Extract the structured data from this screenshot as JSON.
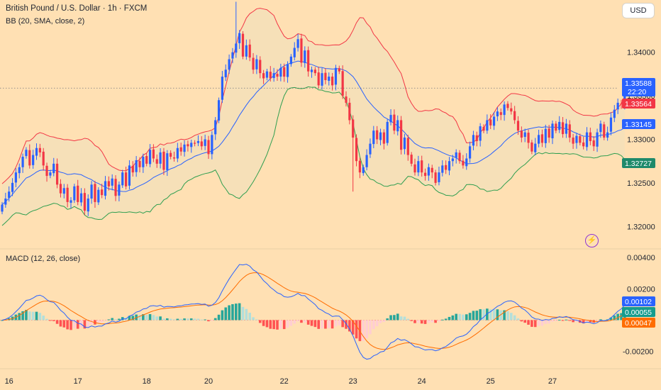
{
  "header": {
    "title": "British Pound / U.S. Dollar · 1h · FXCM",
    "currency": "USD"
  },
  "indicators": {
    "bb_label": "BB (20, SMA, close, 2)",
    "macd_label": "MACD (12, 26, close)"
  },
  "colors": {
    "background": "#ffe0b3",
    "bull": "#2962ff",
    "bear": "#f23645",
    "bb_basis": "#2962ff",
    "bb_upper": "#f23645",
    "bb_lower": "#2e9e4f",
    "bb_fill": "#f5dfb8",
    "macd_line": "#2962ff",
    "signal_line": "#ff6d00",
    "hist_up_strong": "#26a69a",
    "hist_up_weak": "#b2dfdb",
    "hist_down_strong": "#ff5252",
    "hist_down_weak": "#ffcdd2"
  },
  "chart_data": {
    "type": "candlestick",
    "price_ticks": [
      "1.34000",
      "1.33500",
      "1.33000",
      "1.32500",
      "1.32000"
    ],
    "price_ylim": [
      1.3175,
      1.346
    ],
    "macd_ticks": [
      "0.00400",
      "0.00200",
      "-0.00200"
    ],
    "macd_ylim": [
      -0.0031,
      0.0045
    ],
    "x_labels": [
      {
        "label": "16",
        "i": 2
      },
      {
        "label": "17",
        "i": 22
      },
      {
        "label": "18",
        "i": 42
      },
      {
        "label": "20",
        "i": 60
      },
      {
        "label": "22",
        "i": 82
      },
      {
        "label": "23",
        "i": 102
      },
      {
        "label": "24",
        "i": 122
      },
      {
        "label": "25",
        "i": 142
      },
      {
        "label": "27",
        "i": 160
      }
    ],
    "closes": [
      1.3225,
      1.3232,
      1.324,
      1.325,
      1.3262,
      1.3268,
      1.328,
      1.3288,
      1.327,
      1.3282,
      1.329,
      1.3285,
      1.327,
      1.3258,
      1.3262,
      1.3272,
      1.3248,
      1.3238,
      1.3244,
      1.3228,
      1.323,
      1.3246,
      1.3228,
      1.3238,
      1.3218,
      1.3232,
      1.3248,
      1.3228,
      1.3242,
      1.3236,
      1.3252,
      1.3246,
      1.3255,
      1.3235,
      1.3248,
      1.3262,
      1.3246,
      1.327,
      1.3262,
      1.3276,
      1.3268,
      1.328,
      1.3272,
      1.3288,
      1.3278,
      1.3272,
      1.3285,
      1.3265,
      1.3284,
      1.328,
      1.3278,
      1.329,
      1.3286,
      1.3294,
      1.3292,
      1.3296,
      1.3295,
      1.3298,
      1.3292,
      1.33,
      1.3283,
      1.3305,
      1.3322,
      1.3345,
      1.3372,
      1.338,
      1.3392,
      1.34,
      1.341,
      1.3422,
      1.3395,
      1.3408,
      1.3394,
      1.338,
      1.3392,
      1.3376,
      1.337,
      1.3378,
      1.337,
      1.3376,
      1.3372,
      1.3382,
      1.3372,
      1.3386,
      1.3395,
      1.3405,
      1.3415,
      1.3388,
      1.3402,
      1.3378,
      1.338,
      1.3376,
      1.3362,
      1.3376,
      1.3368,
      1.3372,
      1.3362,
      1.3382,
      1.3378,
      1.335,
      1.3342,
      1.3322,
      1.3302,
      1.3275,
      1.3262,
      1.3268,
      1.3282,
      1.3295,
      1.331,
      1.33,
      1.3308,
      1.3295,
      1.332,
      1.3328,
      1.331,
      1.3322,
      1.3288,
      1.3302,
      1.3282,
      1.3272,
      1.3262,
      1.3275,
      1.3262,
      1.3258,
      1.3268,
      1.3262,
      1.325,
      1.3262,
      1.327,
      1.3265,
      1.3275,
      1.3278,
      1.3285,
      1.3275,
      1.327,
      1.3278,
      1.3292,
      1.3305,
      1.3298,
      1.3315,
      1.331,
      1.3322,
      1.3316,
      1.3326,
      1.3332,
      1.3328,
      1.334,
      1.3336,
      1.3332,
      1.3322,
      1.331,
      1.3302,
      1.3308,
      1.3296,
      1.3286,
      1.3295,
      1.3305,
      1.3296,
      1.3312,
      1.3302,
      1.3318,
      1.331,
      1.332,
      1.3306,
      1.3318,
      1.3302,
      1.3295,
      1.3304,
      1.3296,
      1.3292,
      1.3308,
      1.3298,
      1.3292,
      1.3308,
      1.3318,
      1.3302,
      1.3308,
      1.3325,
      1.3334,
      1.3342,
      1.3341,
      1.33588
    ],
    "price_labels": [
      {
        "value": 1.33588,
        "text": "1.33588",
        "sub": "22:20",
        "bg": "#2962ff",
        "fg": "#ffffff"
      },
      {
        "value": 1.33564,
        "text": "1.33564",
        "bg": "#f23645",
        "fg": "#ffffff"
      },
      {
        "value": 1.33145,
        "text": "1.33145",
        "bg": "#2962ff",
        "fg": "#ffffff"
      },
      {
        "value": 1.32727,
        "text": "1.32727",
        "bg": "#1e8a6a",
        "fg": "#ffffff"
      }
    ],
    "macd_labels": [
      {
        "value": 0.00102,
        "text": "0.00102",
        "bg": "#2962ff",
        "fg": "#ffffff"
      },
      {
        "value": 0.00055,
        "text": "0.00055",
        "bg": "#169c8e",
        "fg": "#ffffff"
      },
      {
        "value": 0.00047,
        "text": "0.00047",
        "bg": "#ff6d00",
        "fg": "#ffffff"
      }
    ],
    "dashed_level": 1.33588
  }
}
